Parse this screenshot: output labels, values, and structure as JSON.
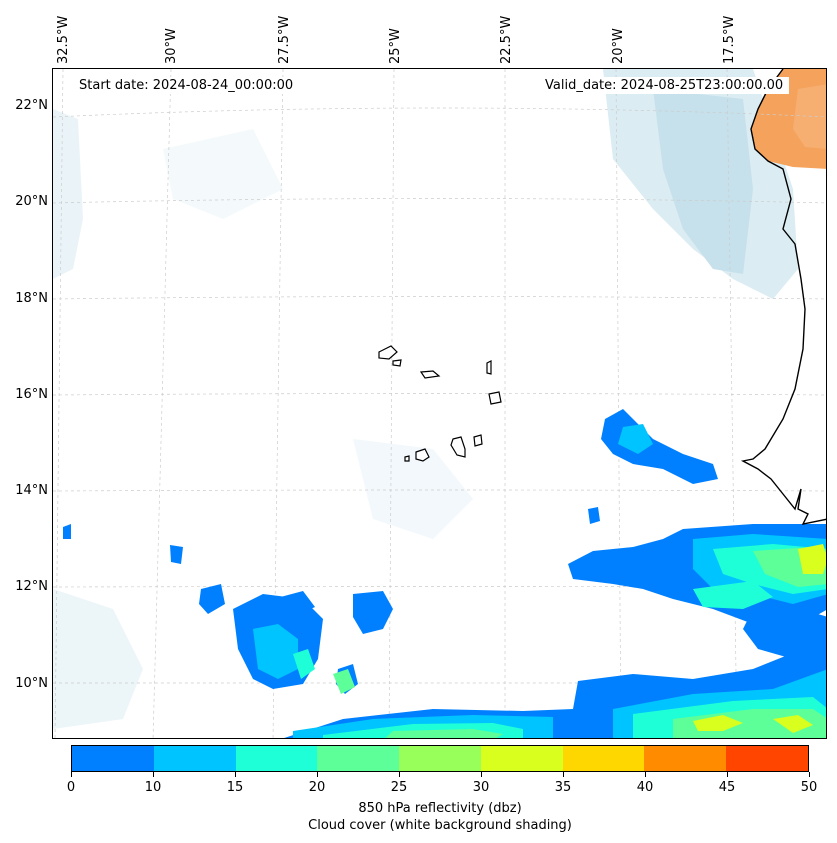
{
  "header": {
    "start_date": "Start date: 2024-08-24_00:00:00",
    "valid_date": "Valid_date: 2024-08-25T23:00:00.00"
  },
  "longitude_labels": [
    "32.5°W",
    "30°W",
    "27.5°W",
    "25°W",
    "22.5°W",
    "20°W",
    "17.5°W"
  ],
  "latitude_labels": [
    "22°N",
    "20°N",
    "18°N",
    "16°N",
    "14°N",
    "12°N",
    "10°N"
  ],
  "colorbar": {
    "ticks": [
      "0",
      "10",
      "15",
      "20",
      "25",
      "30",
      "35",
      "40",
      "45",
      "50"
    ],
    "colors": [
      "#0080ff",
      "#00c4ff",
      "#1effd8",
      "#5dff98",
      "#98ff5a",
      "#d8ff1e",
      "#ffd700",
      "#ff8c00",
      "#ff4500"
    ],
    "label_line1": "850 hPa reflectivity (dbz)",
    "label_line2": "Cloud cover (white background shading)"
  },
  "colors": {
    "land_orange": "#f5a35c",
    "cloud_blue": "#bcdde8",
    "coastline": "#000000",
    "gridline": "#cccccc"
  }
}
